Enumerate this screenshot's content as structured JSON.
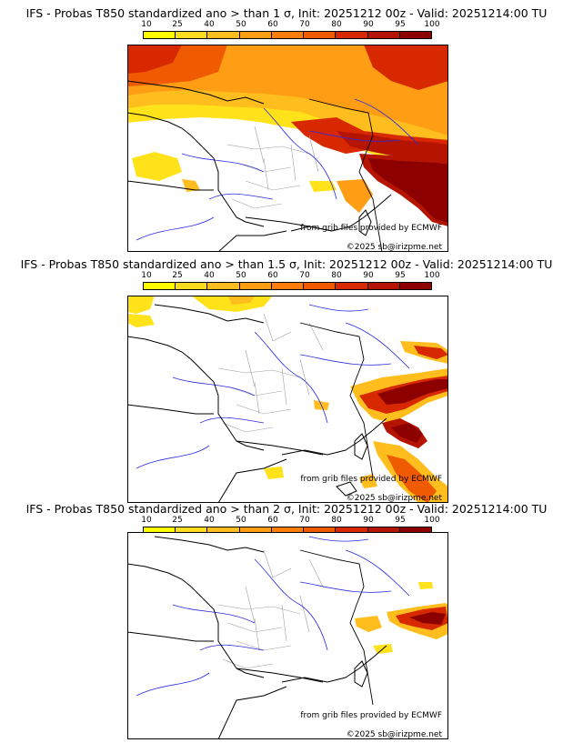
{
  "colorbar": {
    "ticks": [
      "10",
      "25",
      "40",
      "50",
      "60",
      "70",
      "80",
      "90",
      "95",
      "100"
    ],
    "colors": [
      "#ffff00",
      "#ffdc1e",
      "#ffbe1e",
      "#ff9e14",
      "#ff7d0a",
      "#f05a00",
      "#d72800",
      "#b41400",
      "#8c0000"
    ]
  },
  "panels": [
    {
      "title": "IFS - Probas T850  standardized ano > than 1 σ, Init: 20251212 00z - Valid: 20251214:00 TU",
      "credit_source": "from grib files provided by ECMWF",
      "credit_copyright": "©2025 sb@irizpme.net"
    },
    {
      "title": "IFS - Probas T850  standardized ano > than 1.5 σ, Init: 20251212 00z - Valid: 20251214:00 TU",
      "credit_source": "from grib files provided by ECMWF",
      "credit_copyright": "©2025 sb@irizpme.net"
    },
    {
      "title": "IFS - Probas T850  standardized ano > than 2 σ, Init: 20251212 00z - Valid: 20251214:00 TU",
      "credit_source": "from grib files provided by ECMWF",
      "credit_copyright": "©2025 sb@irizpme.net"
    }
  ],
  "map_colors": {
    "coast": "#000000",
    "rivers": "#2a2ae0",
    "regions": "#a0a0a0",
    "border": "#000000"
  }
}
